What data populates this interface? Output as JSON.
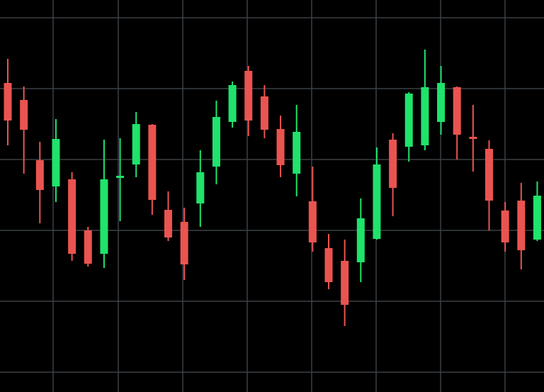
{
  "chart_data": {
    "type": "candlestick",
    "categories": [
      null,
      null,
      null,
      null,
      null,
      null,
      null,
      null,
      null,
      null,
      null,
      null,
      null,
      null,
      null,
      null,
      null,
      null,
      null,
      null,
      null,
      null,
      null,
      null,
      null,
      null,
      null,
      null,
      null,
      null,
      null,
      null,
      null,
      null
    ],
    "open": [
      436,
      412,
      327,
      290,
      300,
      228,
      195,
      302,
      321,
      377,
      257,
      240,
      266,
      318,
      381,
      453,
      417,
      371,
      308,
      269,
      203,
      185,
      183,
      216,
      356,
      346,
      348,
      381,
      430,
      360,
      343,
      256,
      270,
      215
    ],
    "high": [
      470,
      431,
      353,
      385,
      310,
      233,
      356,
      358,
      395,
      378,
      283,
      260,
      341,
      411,
      438,
      460,
      433,
      390,
      405,
      318,
      223,
      215,
      273,
      345,
      365,
      423,
      483,
      460,
      431,
      405,
      355,
      268,
      295,
      297
    ],
    "low": [
      348,
      308,
      238,
      268,
      185,
      177,
      175,
      241,
      303,
      250,
      213,
      158,
      233,
      293,
      373,
      361,
      358,
      303,
      276,
      198,
      145,
      93,
      155,
      215,
      248,
      325,
      341,
      363,
      328,
      311,
      228,
      198,
      173,
      213
    ],
    "close": [
      383,
      370,
      285,
      357,
      195,
      181,
      300,
      305,
      378,
      271,
      218,
      180,
      310,
      388,
      433,
      383,
      370,
      320,
      367,
      211,
      155,
      123,
      245,
      321,
      288,
      421,
      430,
      436,
      363,
      357,
      270,
      211,
      200,
      277
    ],
    "up_color": "#1fe36b",
    "down_color": "#ea5450",
    "ylim": [
      0,
      553
    ],
    "yticks": [
      28,
      128,
      228,
      328,
      428,
      528
    ],
    "grid": true
  }
}
